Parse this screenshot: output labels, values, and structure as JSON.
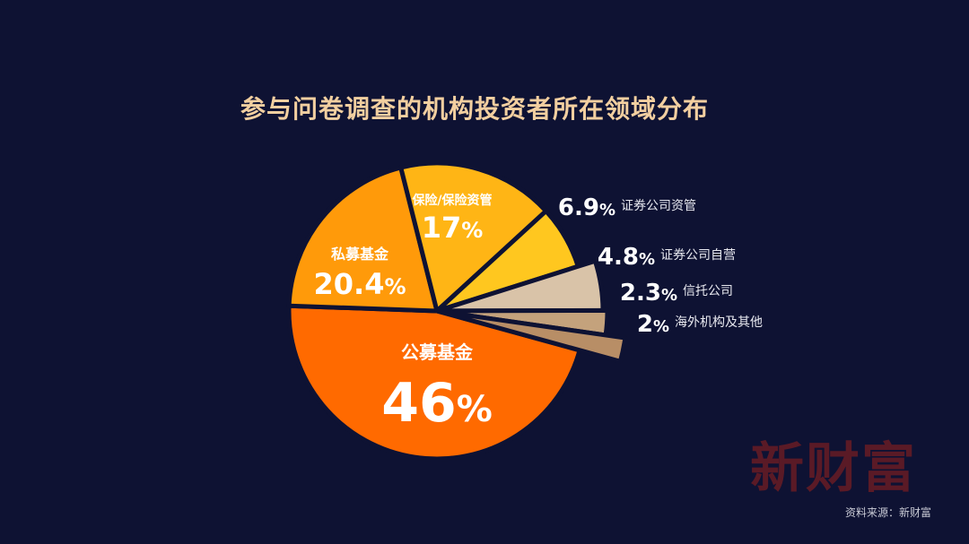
{
  "page": {
    "title": "参与问卷调查的机构投资者所在领域分布",
    "watermark": "新财富",
    "source": "资料来源：新财富"
  },
  "chart_data": {
    "type": "pie",
    "title": "参与问卷调查的机构投资者所在领域分布",
    "unit": "%",
    "slices": [
      {
        "label": "公募基金",
        "value": 46,
        "display": "46",
        "color": "#ff6a00"
      },
      {
        "label": "私募基金",
        "value": 20.4,
        "display": "20.4",
        "color": "#ff9a0a"
      },
      {
        "label": "保险/保险资管",
        "value": 17,
        "display": "17",
        "color": "#ffb515"
      },
      {
        "label": "证券公司资管",
        "value": 6.9,
        "display": "6.9",
        "color": "#ffc71f"
      },
      {
        "label": "证券公司自营",
        "value": 4.8,
        "display": "4.8",
        "color": "#d9c3a8"
      },
      {
        "label": "信托公司",
        "value": 2.3,
        "display": "2.3",
        "color": "#c4a27c"
      },
      {
        "label": "海外机构及其他",
        "value": 2,
        "display": "2",
        "color": "#b88e66"
      }
    ]
  }
}
